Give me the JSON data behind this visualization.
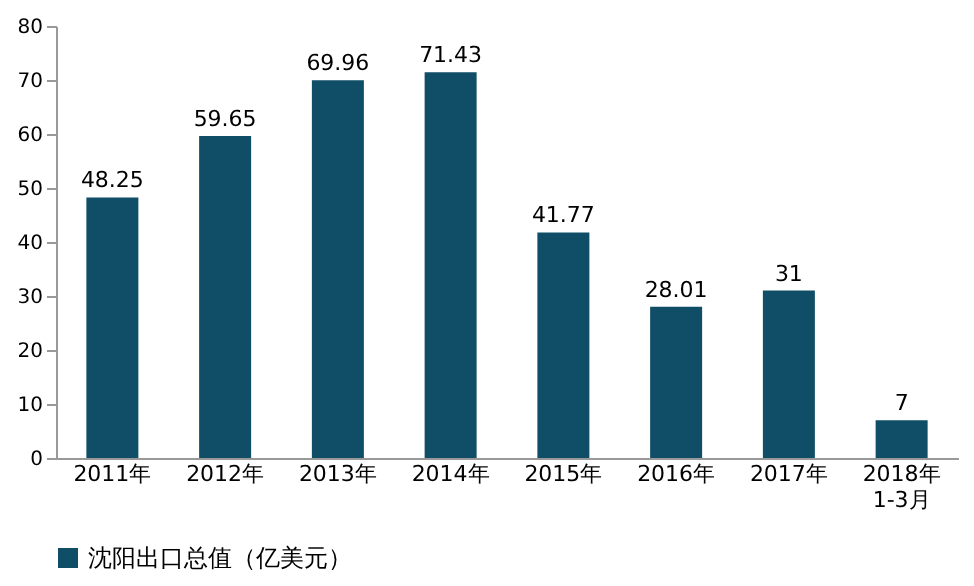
{
  "chart_data": {
    "type": "bar",
    "categories": [
      "2011年",
      "2012年",
      "2013年",
      "2014年",
      "2015年",
      "2016年",
      "2017年",
      "2018年\n1-3月"
    ],
    "series": [
      {
        "name": "沈阳出口总值（亿美元）",
        "color": "#0f4e66",
        "values": [
          48.25,
          59.65,
          69.96,
          71.43,
          41.77,
          28.01,
          31,
          7
        ]
      }
    ],
    "ylim": [
      0,
      80
    ],
    "yticks": [
      0,
      10,
      20,
      30,
      40,
      50,
      60,
      70,
      80
    ],
    "grid": false,
    "legend": "bottom",
    "data_labels": true
  }
}
